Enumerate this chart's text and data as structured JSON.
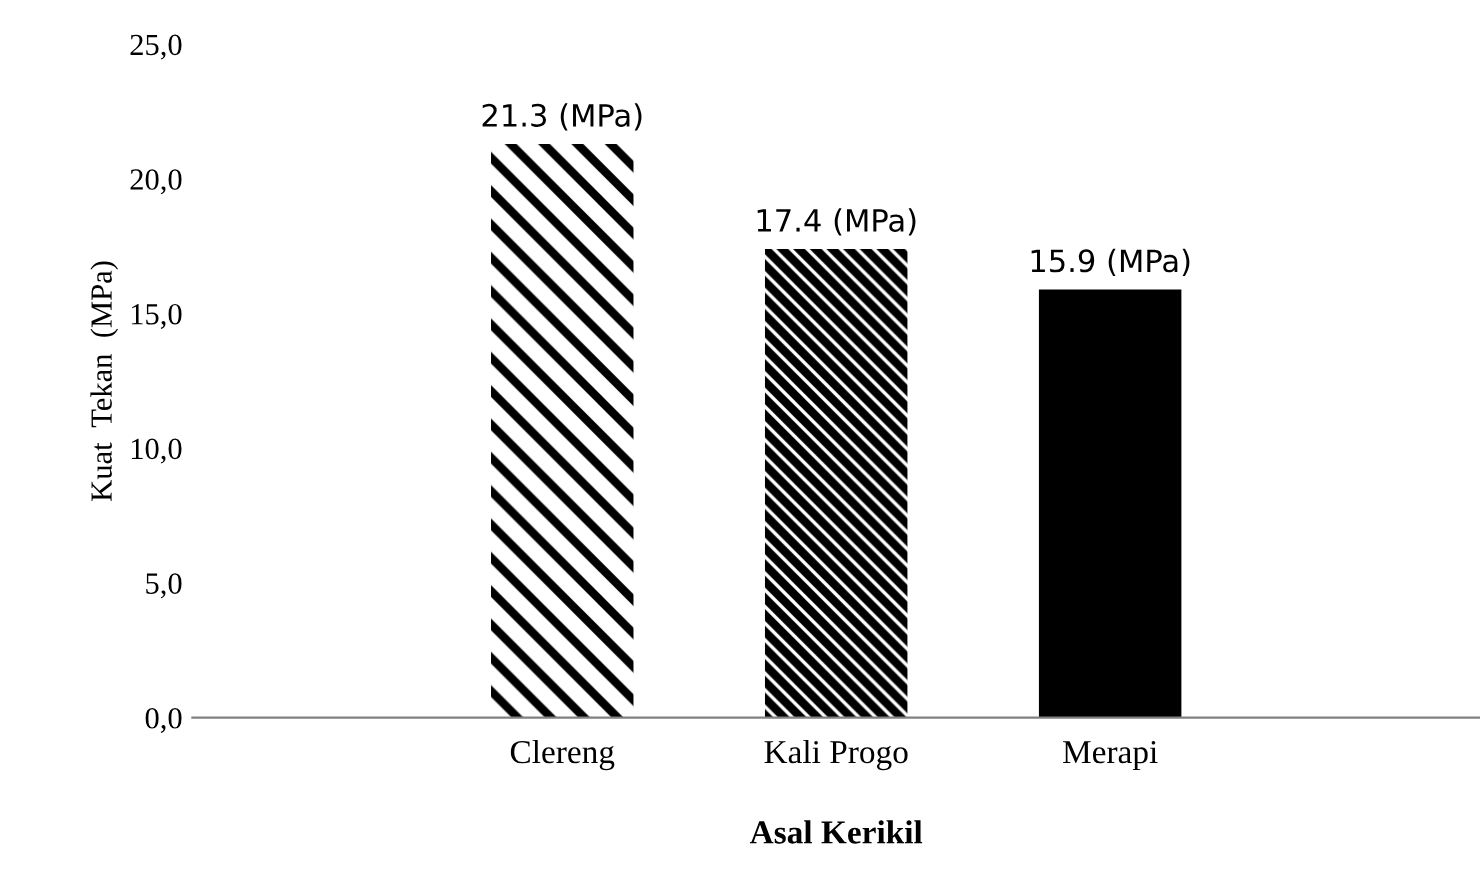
{
  "chart_data": {
    "type": "bar",
    "xlabel": "Asal Kerikil",
    "ylabel": "Kuat  Tekan  (MPa)",
    "categories": [
      "Clereng",
      "Kali Progo",
      "Merapi"
    ],
    "values": [
      21.3,
      17.4,
      15.9
    ],
    "value_labels": [
      "21.3 (MPa)",
      "17.4 (MPa)",
      "15.9 (MPa)"
    ],
    "color": "#000000",
    "ylim": [
      0,
      25
    ],
    "yticks": [
      {
        "value": 0,
        "label": "0,0"
      },
      {
        "value": 5,
        "label": "5,0"
      },
      {
        "value": 10,
        "label": "10,0"
      },
      {
        "value": 15,
        "label": "15,0"
      },
      {
        "value": 20,
        "label": "20,0"
      },
      {
        "value": 25,
        "label": "25,0"
      }
    ],
    "grid": false,
    "legend": false
  }
}
